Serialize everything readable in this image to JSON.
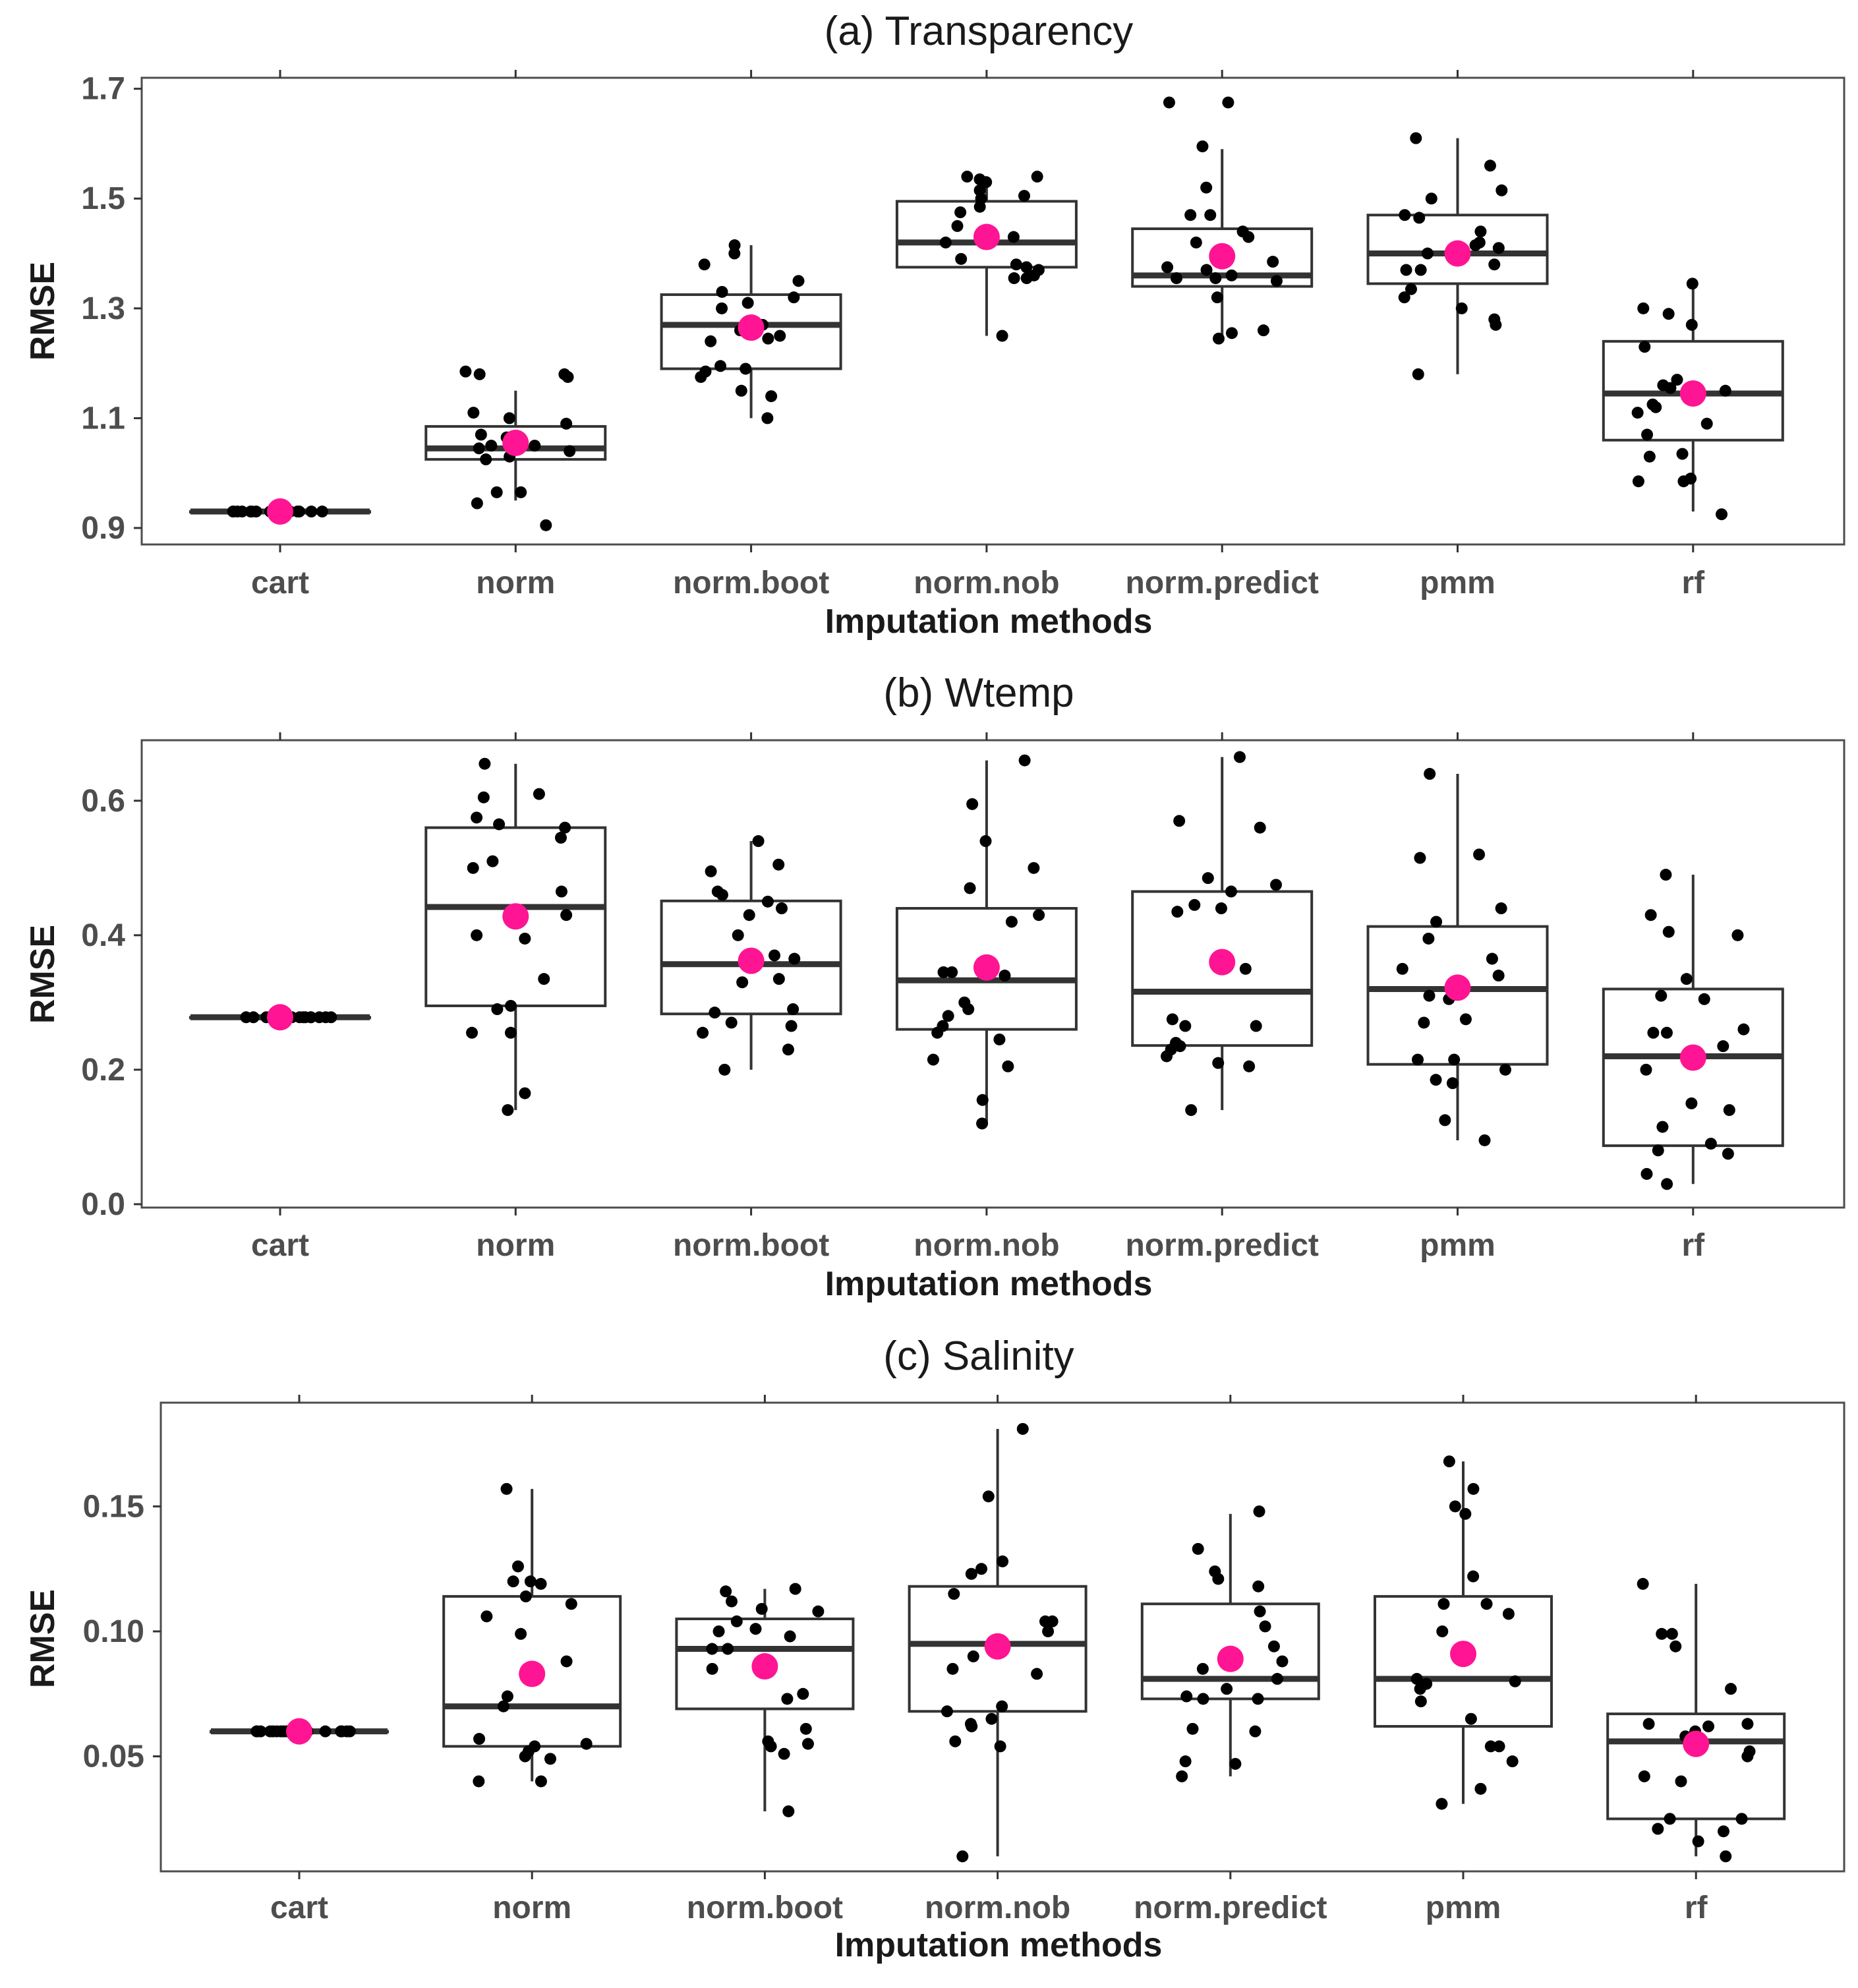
{
  "colors": {
    "mean": "#ff1493",
    "points": "#000000",
    "box": "#333333",
    "frame": "#4d4d4d"
  },
  "chart_data": [
    {
      "type": "box",
      "title": "(a) Transparency",
      "xlabel": "Imputation methods",
      "ylabel": "RMSE",
      "ylim": [
        0.87,
        1.72
      ],
      "yticks": [
        0.9,
        1.1,
        1.3,
        1.5,
        1.7
      ],
      "ytick_labels": [
        "0.9",
        "1.1",
        "1.3",
        "1.5",
        "1.7"
      ],
      "categories": [
        "cart",
        "norm",
        "norm.boot",
        "norm.nob",
        "norm.predict",
        "pmm",
        "rf"
      ],
      "boxes": [
        {
          "min": 0.93,
          "q1": 0.93,
          "median": 0.93,
          "q3": 0.93,
          "max": 0.93,
          "mean": 0.93
        },
        {
          "min": 0.95,
          "q1": 1.025,
          "median": 1.045,
          "q3": 1.085,
          "max": 1.15,
          "mean": 1.055
        },
        {
          "min": 1.1,
          "q1": 1.19,
          "median": 1.27,
          "q3": 1.325,
          "max": 1.415,
          "mean": 1.265
        },
        {
          "min": 1.25,
          "q1": 1.375,
          "median": 1.42,
          "q3": 1.495,
          "max": 1.54,
          "mean": 1.43
        },
        {
          "min": 1.25,
          "q1": 1.34,
          "median": 1.36,
          "q3": 1.445,
          "max": 1.59,
          "mean": 1.395
        },
        {
          "min": 1.18,
          "q1": 1.345,
          "median": 1.4,
          "q3": 1.47,
          "max": 1.61,
          "mean": 1.4
        },
        {
          "min": 0.93,
          "q1": 1.06,
          "median": 1.145,
          "q3": 1.24,
          "max": 1.345,
          "mean": 1.145
        }
      ],
      "points": [
        [
          0.93,
          0.93,
          0.93,
          0.93,
          0.93,
          0.93,
          0.93,
          0.93,
          0.93,
          0.93,
          0.93,
          0.93,
          0.93,
          0.93,
          0.93,
          0.93,
          0.93,
          0.93,
          0.93,
          0.93
        ],
        [
          1.18,
          1.185,
          1.18,
          1.175,
          1.11,
          1.1,
          1.09,
          1.07,
          1.065,
          1.055,
          1.05,
          1.05,
          1.045,
          1.04,
          1.03,
          1.025,
          0.965,
          0.965,
          0.945,
          0.905
        ],
        [
          1.415,
          1.4,
          1.38,
          1.35,
          1.33,
          1.32,
          1.31,
          1.3,
          1.27,
          1.26,
          1.25,
          1.245,
          1.24,
          1.195,
          1.19,
          1.185,
          1.175,
          1.15,
          1.14,
          1.1
        ],
        [
          1.54,
          1.54,
          1.535,
          1.53,
          1.515,
          1.505,
          1.5,
          1.485,
          1.475,
          1.45,
          1.43,
          1.42,
          1.39,
          1.38,
          1.375,
          1.37,
          1.36,
          1.355,
          1.355,
          1.25
        ],
        [
          1.675,
          1.675,
          1.595,
          1.52,
          1.47,
          1.47,
          1.44,
          1.43,
          1.42,
          1.385,
          1.375,
          1.37,
          1.36,
          1.355,
          1.355,
          1.35,
          1.32,
          1.26,
          1.255,
          1.245
        ],
        [
          1.61,
          1.56,
          1.515,
          1.5,
          1.47,
          1.465,
          1.44,
          1.42,
          1.415,
          1.41,
          1.4,
          1.38,
          1.37,
          1.37,
          1.335,
          1.32,
          1.3,
          1.28,
          1.27,
          1.18
        ],
        [
          1.345,
          1.3,
          1.29,
          1.27,
          1.23,
          1.17,
          1.16,
          1.155,
          1.15,
          1.125,
          1.12,
          1.11,
          1.09,
          1.07,
          1.035,
          1.03,
          0.99,
          0.985,
          0.985,
          0.925
        ]
      ]
    },
    {
      "type": "box",
      "title": "(b) Wtemp",
      "xlabel": "Imputation methods",
      "ylabel": "RMSE",
      "ylim": [
        -0.005,
        0.69
      ],
      "yticks": [
        0.0,
        0.2,
        0.4,
        0.6
      ],
      "ytick_labels": [
        "0.0",
        "0.2",
        "0.4",
        "0.6"
      ],
      "categories": [
        "cart",
        "norm",
        "norm.boot",
        "norm.nob",
        "norm.predict",
        "pmm",
        "rf"
      ],
      "boxes": [
        {
          "min": 0.278,
          "q1": 0.278,
          "median": 0.278,
          "q3": 0.278,
          "max": 0.278,
          "mean": 0.278
        },
        {
          "min": 0.14,
          "q1": 0.295,
          "median": 0.442,
          "q3": 0.56,
          "max": 0.655,
          "mean": 0.428
        },
        {
          "min": 0.2,
          "q1": 0.283,
          "median": 0.357,
          "q3": 0.451,
          "max": 0.54,
          "mean": 0.362
        },
        {
          "min": 0.12,
          "q1": 0.26,
          "median": 0.333,
          "q3": 0.44,
          "max": 0.66,
          "mean": 0.352
        },
        {
          "min": 0.14,
          "q1": 0.236,
          "median": 0.316,
          "q3": 0.465,
          "max": 0.665,
          "mean": 0.36
        },
        {
          "min": 0.095,
          "q1": 0.208,
          "median": 0.32,
          "q3": 0.413,
          "max": 0.64,
          "mean": 0.322
        },
        {
          "min": 0.03,
          "q1": 0.087,
          "median": 0.22,
          "q3": 0.32,
          "max": 0.49,
          "mean": 0.218
        }
      ],
      "points": [
        [
          0.278,
          0.278,
          0.278,
          0.278,
          0.278,
          0.278,
          0.278,
          0.278,
          0.278,
          0.278,
          0.278,
          0.278,
          0.278,
          0.278,
          0.278,
          0.278,
          0.278,
          0.278,
          0.278,
          0.278
        ],
        [
          0.655,
          0.61,
          0.605,
          0.575,
          0.565,
          0.56,
          0.545,
          0.51,
          0.5,
          0.465,
          0.43,
          0.4,
          0.395,
          0.335,
          0.295,
          0.29,
          0.255,
          0.255,
          0.165,
          0.14
        ],
        [
          0.54,
          0.505,
          0.495,
          0.465,
          0.46,
          0.45,
          0.44,
          0.43,
          0.4,
          0.37,
          0.365,
          0.335,
          0.33,
          0.29,
          0.285,
          0.27,
          0.265,
          0.255,
          0.23,
          0.2
        ],
        [
          0.66,
          0.595,
          0.54,
          0.5,
          0.47,
          0.43,
          0.42,
          0.345,
          0.345,
          0.34,
          0.3,
          0.29,
          0.28,
          0.265,
          0.255,
          0.245,
          0.215,
          0.205,
          0.155,
          0.12
        ],
        [
          0.665,
          0.57,
          0.56,
          0.485,
          0.475,
          0.465,
          0.445,
          0.44,
          0.435,
          0.35,
          0.275,
          0.265,
          0.265,
          0.24,
          0.235,
          0.23,
          0.22,
          0.21,
          0.205,
          0.14
        ],
        [
          0.64,
          0.52,
          0.515,
          0.44,
          0.42,
          0.395,
          0.365,
          0.35,
          0.34,
          0.305,
          0.27,
          0.215,
          0.215,
          0.185,
          0.18,
          0.125,
          0.095,
          0.31,
          0.275,
          0.2
        ],
        [
          0.49,
          0.43,
          0.405,
          0.4,
          0.335,
          0.31,
          0.305,
          0.26,
          0.255,
          0.235,
          0.2,
          0.15,
          0.14,
          0.115,
          0.09,
          0.08,
          0.075,
          0.045,
          0.03,
          0.255
        ]
      ]
    },
    {
      "type": "box",
      "title": "(c) Salinity",
      "xlabel": "Imputation methods",
      "ylabel": "RMSE",
      "ylim": [
        0.004,
        0.1915
      ],
      "yticks": [
        0.05,
        0.1,
        0.15
      ],
      "ytick_labels": [
        "0.05",
        "0.10",
        "0.15"
      ],
      "categories": [
        "cart",
        "norm",
        "norm.boot",
        "norm.nob",
        "norm.predict",
        "pmm",
        "rf"
      ],
      "boxes": [
        {
          "min": 0.06,
          "q1": 0.06,
          "median": 0.06,
          "q3": 0.06,
          "max": 0.06,
          "mean": 0.06
        },
        {
          "min": 0.04,
          "q1": 0.054,
          "median": 0.07,
          "q3": 0.114,
          "max": 0.157,
          "mean": 0.083
        },
        {
          "min": 0.028,
          "q1": 0.069,
          "median": 0.093,
          "q3": 0.105,
          "max": 0.117,
          "mean": 0.086
        },
        {
          "min": 0.01,
          "q1": 0.068,
          "median": 0.095,
          "q3": 0.118,
          "max": 0.181,
          "mean": 0.094
        },
        {
          "min": 0.042,
          "q1": 0.073,
          "median": 0.081,
          "q3": 0.111,
          "max": 0.147,
          "mean": 0.089
        },
        {
          "min": 0.031,
          "q1": 0.062,
          "median": 0.081,
          "q3": 0.114,
          "max": 0.168,
          "mean": 0.091
        },
        {
          "min": 0.01,
          "q1": 0.025,
          "median": 0.056,
          "q3": 0.067,
          "max": 0.119,
          "mean": 0.055
        }
      ],
      "points": [
        [
          0.06,
          0.06,
          0.06,
          0.06,
          0.06,
          0.06,
          0.06,
          0.06,
          0.06,
          0.06,
          0.06,
          0.06,
          0.06,
          0.06,
          0.06,
          0.06,
          0.06,
          0.06,
          0.06,
          0.06
        ],
        [
          0.157,
          0.126,
          0.12,
          0.12,
          0.119,
          0.114,
          0.111,
          0.099,
          0.088,
          0.074,
          0.07,
          0.057,
          0.055,
          0.054,
          0.052,
          0.05,
          0.049,
          0.04,
          0.04,
          0.106
        ],
        [
          0.117,
          0.116,
          0.112,
          0.109,
          0.104,
          0.101,
          0.1,
          0.098,
          0.093,
          0.093,
          0.085,
          0.075,
          0.073,
          0.056,
          0.055,
          0.054,
          0.051,
          0.028,
          0.108,
          0.061
        ],
        [
          0.181,
          0.154,
          0.128,
          0.125,
          0.123,
          0.115,
          0.104,
          0.104,
          0.1,
          0.085,
          0.083,
          0.07,
          0.068,
          0.065,
          0.063,
          0.062,
          0.056,
          0.054,
          0.01,
          0.09
        ],
        [
          0.148,
          0.133,
          0.124,
          0.121,
          0.118,
          0.108,
          0.102,
          0.085,
          0.081,
          0.077,
          0.074,
          0.073,
          0.073,
          0.06,
          0.061,
          0.048,
          0.047,
          0.042,
          0.094,
          0.088
        ],
        [
          0.168,
          0.157,
          0.15,
          0.147,
          0.122,
          0.111,
          0.107,
          0.1,
          0.081,
          0.08,
          0.079,
          0.077,
          0.072,
          0.065,
          0.054,
          0.054,
          0.048,
          0.037,
          0.031,
          0.111
        ],
        [
          0.119,
          0.099,
          0.099,
          0.094,
          0.077,
          0.063,
          0.063,
          0.062,
          0.06,
          0.058,
          0.052,
          0.05,
          0.042,
          0.04,
          0.025,
          0.025,
          0.021,
          0.02,
          0.016,
          0.01
        ]
      ]
    }
  ]
}
